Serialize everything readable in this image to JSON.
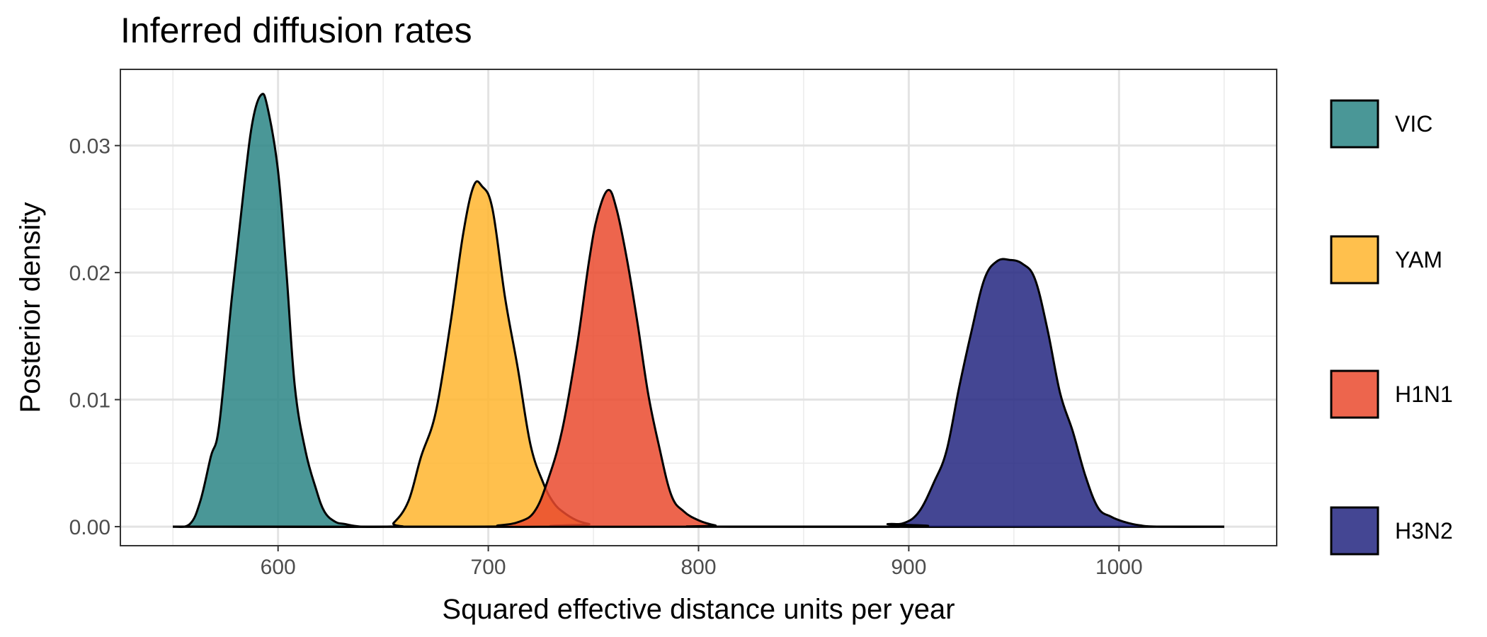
{
  "chart_data": {
    "type": "area",
    "title": "Inferred diffusion rates",
    "xlabel": "Squared effective distance units per year",
    "ylabel": "Posterior density",
    "xlim": [
      525,
      1075
    ],
    "ylim": [
      -0.0015,
      0.036
    ],
    "x_ticks": [
      600,
      700,
      800,
      900,
      1000
    ],
    "x_tick_labels": [
      "600",
      "700",
      "800",
      "900",
      "1000"
    ],
    "y_ticks": [
      0.0,
      0.01,
      0.02,
      0.03
    ],
    "y_tick_labels": [
      "0.00",
      "0.01",
      "0.02",
      "0.03"
    ],
    "grid": true,
    "legend_position": "right",
    "series": [
      {
        "name": "VIC",
        "color": "#2a8585",
        "points": [
          [
            550,
            0
          ],
          [
            558,
            0.0002
          ],
          [
            563,
            0.002
          ],
          [
            568,
            0.0055
          ],
          [
            572,
            0.008
          ],
          [
            578,
            0.018
          ],
          [
            584,
            0.027
          ],
          [
            588,
            0.032
          ],
          [
            592,
            0.034
          ],
          [
            595,
            0.033
          ],
          [
            600,
            0.028
          ],
          [
            604,
            0.02
          ],
          [
            608,
            0.011
          ],
          [
            613,
            0.006
          ],
          [
            618,
            0.003
          ],
          [
            622,
            0.0012
          ],
          [
            627,
            0.0004
          ],
          [
            632,
            0.0002
          ],
          [
            640,
            0.0
          ],
          [
            660,
            0.0
          ],
          [
            700,
            0.0
          ],
          [
            1050,
            0.0
          ]
        ]
      },
      {
        "name": "YAM",
        "color": "#ffb52e",
        "points": [
          [
            550,
            0
          ],
          [
            650,
            0
          ],
          [
            655,
            0.0003
          ],
          [
            662,
            0.002
          ],
          [
            668,
            0.0055
          ],
          [
            675,
            0.009
          ],
          [
            682,
            0.016
          ],
          [
            688,
            0.023
          ],
          [
            693,
            0.0268
          ],
          [
            697,
            0.0268
          ],
          [
            702,
            0.025
          ],
          [
            708,
            0.018
          ],
          [
            714,
            0.0125
          ],
          [
            720,
            0.0065
          ],
          [
            726,
            0.0035
          ],
          [
            731,
            0.0019
          ],
          [
            736,
            0.0011
          ],
          [
            742,
            0.0005
          ],
          [
            748,
            0.0002
          ],
          [
            755,
            0.0
          ],
          [
            1050,
            0.0
          ]
        ]
      },
      {
        "name": "H1N1",
        "color": "#ea4a2e",
        "points": [
          [
            550,
            0
          ],
          [
            690,
            0
          ],
          [
            705,
            0.0001
          ],
          [
            715,
            0.0004
          ],
          [
            722,
            0.0012
          ],
          [
            728,
            0.0035
          ],
          [
            735,
            0.0075
          ],
          [
            742,
            0.014
          ],
          [
            748,
            0.021
          ],
          [
            752,
            0.0245
          ],
          [
            757,
            0.0265
          ],
          [
            761,
            0.025
          ],
          [
            766,
            0.021
          ],
          [
            771,
            0.016
          ],
          [
            776,
            0.0105
          ],
          [
            781,
            0.0065
          ],
          [
            787,
            0.0025
          ],
          [
            793,
            0.0012
          ],
          [
            800,
            0.0005
          ],
          [
            808,
            0.0001
          ],
          [
            815,
            0.0
          ],
          [
            1050,
            0.0
          ]
        ]
      },
      {
        "name": "H3N2",
        "color": "#232680",
        "points": [
          [
            550,
            0
          ],
          [
            880,
            0
          ],
          [
            890,
            0.0002
          ],
          [
            898,
            0.0003
          ],
          [
            905,
            0.0012
          ],
          [
            912,
            0.0035
          ],
          [
            918,
            0.006
          ],
          [
            924,
            0.011
          ],
          [
            930,
            0.0155
          ],
          [
            936,
            0.0195
          ],
          [
            942,
            0.0209
          ],
          [
            948,
            0.021
          ],
          [
            954,
            0.0207
          ],
          [
            960,
            0.0195
          ],
          [
            966,
            0.0155
          ],
          [
            972,
            0.0105
          ],
          [
            978,
            0.0075
          ],
          [
            984,
            0.004
          ],
          [
            990,
            0.0015
          ],
          [
            996,
            0.0008
          ],
          [
            1002,
            0.0004
          ],
          [
            1010,
            0.0001
          ],
          [
            1020,
            0.0
          ],
          [
            1050,
            0.0
          ]
        ]
      }
    ]
  }
}
